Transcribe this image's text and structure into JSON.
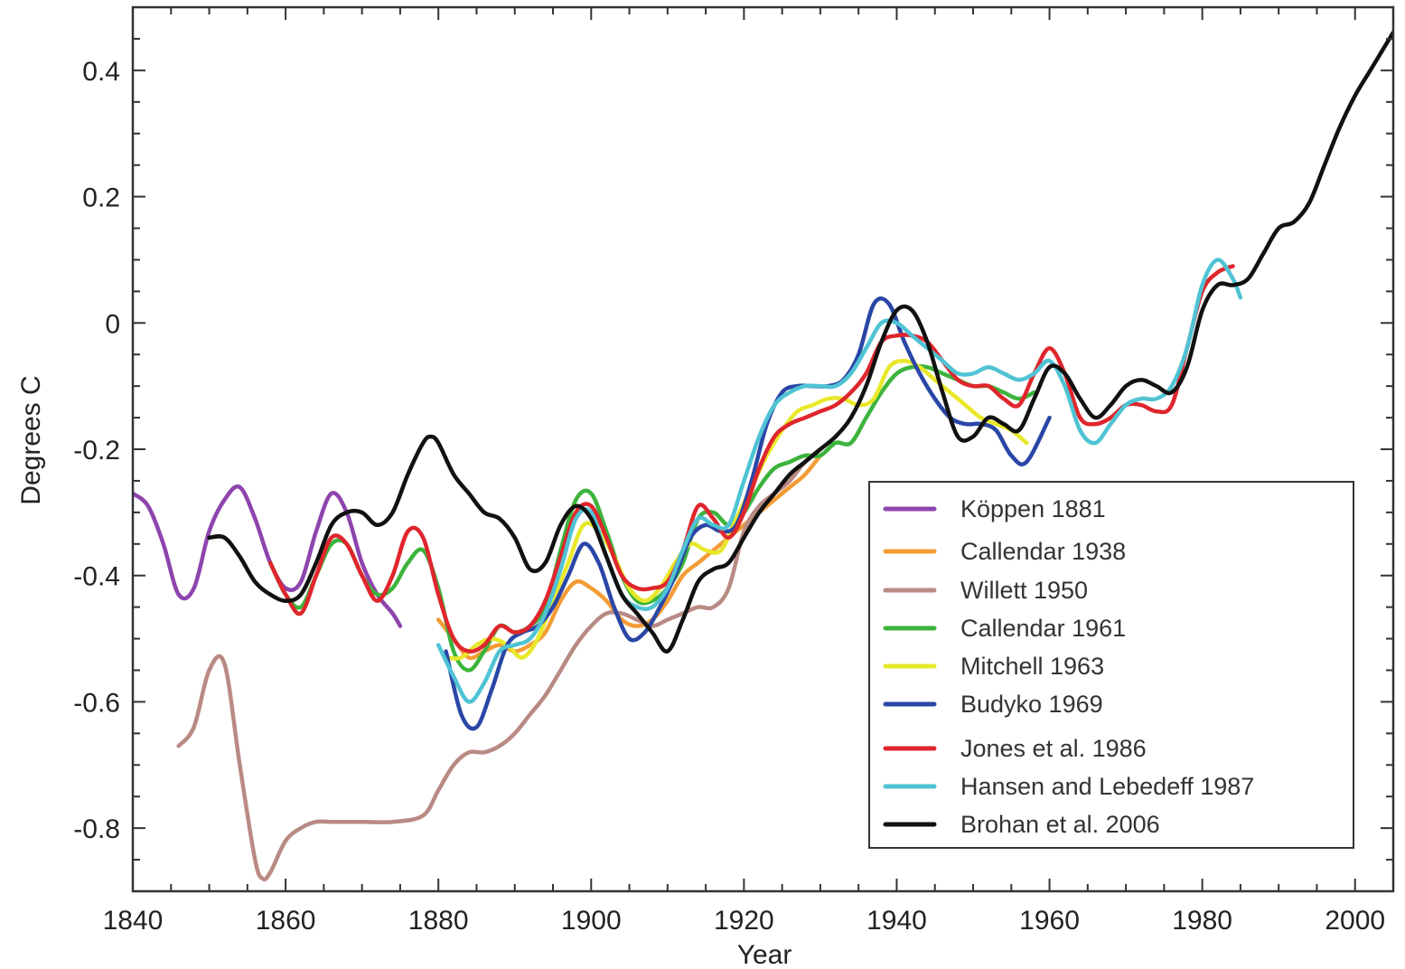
{
  "chart_data": {
    "type": "line",
    "xlabel": "Year",
    "ylabel": "Degrees C",
    "xlim": [
      1840,
      2005
    ],
    "ylim": [
      -0.9,
      0.5
    ],
    "xticks": [
      1840,
      1860,
      1880,
      1900,
      1920,
      1940,
      1960,
      1980,
      2000
    ],
    "yticks": [
      -0.8,
      -0.6,
      -0.4,
      -0.2,
      0,
      0.2,
      0.4
    ],
    "ytick_labels": [
      "-0.8",
      "-0.6",
      "-0.4",
      "-0.2",
      "0",
      "0.2",
      "0.4"
    ],
    "xtick_labels": [
      "1840",
      "1860",
      "1880",
      "1900",
      "1920",
      "1940",
      "1960",
      "1980",
      "2000"
    ],
    "grid": false,
    "legend_position": "lower-right",
    "series": [
      {
        "name": "Köppen 1881",
        "color": "#8e44ad",
        "x": [
          1840,
          1842,
          1844,
          1846,
          1848,
          1850,
          1852,
          1854,
          1856,
          1858,
          1860,
          1862,
          1864,
          1866,
          1868,
          1870,
          1872,
          1874,
          1875
        ],
        "y": [
          -0.27,
          -0.29,
          -0.35,
          -0.43,
          -0.42,
          -0.33,
          -0.28,
          -0.26,
          -0.31,
          -0.38,
          -0.42,
          -0.41,
          -0.33,
          -0.27,
          -0.3,
          -0.38,
          -0.43,
          -0.46,
          -0.48
        ]
      },
      {
        "name": "Callendar 1938",
        "color": "#f39c35",
        "x": [
          1880,
          1882,
          1884,
          1886,
          1888,
          1890,
          1892,
          1894,
          1896,
          1898,
          1900,
          1902,
          1904,
          1906,
          1908,
          1910,
          1912,
          1914,
          1916,
          1918,
          1920,
          1922,
          1924,
          1926,
          1928,
          1930
        ],
        "y": [
          -0.47,
          -0.5,
          -0.53,
          -0.52,
          -0.51,
          -0.52,
          -0.51,
          -0.49,
          -0.44,
          -0.41,
          -0.42,
          -0.44,
          -0.47,
          -0.48,
          -0.47,
          -0.44,
          -0.4,
          -0.38,
          -0.36,
          -0.34,
          -0.32,
          -0.3,
          -0.28,
          -0.26,
          -0.24,
          -0.21
        ]
      },
      {
        "name": "Willett 1950",
        "color": "#b98a84",
        "x": [
          1846,
          1848,
          1850,
          1852,
          1854,
          1856,
          1857,
          1858,
          1860,
          1862,
          1864,
          1866,
          1870,
          1874,
          1878,
          1880,
          1882,
          1884,
          1886,
          1888,
          1890,
          1892,
          1894,
          1896,
          1898,
          1900,
          1902,
          1904,
          1906,
          1908,
          1910,
          1912,
          1914,
          1916,
          1918,
          1920,
          1922,
          1924,
          1926,
          1928,
          1930
        ],
        "y": [
          -0.67,
          -0.64,
          -0.55,
          -0.54,
          -0.7,
          -0.85,
          -0.88,
          -0.87,
          -0.82,
          -0.8,
          -0.79,
          -0.79,
          -0.79,
          -0.79,
          -0.78,
          -0.74,
          -0.7,
          -0.68,
          -0.68,
          -0.67,
          -0.65,
          -0.62,
          -0.59,
          -0.55,
          -0.51,
          -0.48,
          -0.46,
          -0.46,
          -0.47,
          -0.48,
          -0.47,
          -0.46,
          -0.45,
          -0.45,
          -0.42,
          -0.33,
          -0.29,
          -0.27,
          -0.25,
          -0.22,
          -0.2
        ]
      },
      {
        "name": "Callendar 1961",
        "color": "#3cb43c",
        "x": [
          1858,
          1860,
          1862,
          1864,
          1866,
          1868,
          1870,
          1872,
          1874,
          1876,
          1878,
          1880,
          1882,
          1884,
          1886,
          1888,
          1890,
          1892,
          1894,
          1896,
          1898,
          1900,
          1902,
          1904,
          1906,
          1908,
          1910,
          1912,
          1914,
          1916,
          1918,
          1920,
          1922,
          1924,
          1926,
          1928,
          1930,
          1932,
          1934,
          1936,
          1938,
          1940,
          1942,
          1944,
          1946,
          1948,
          1950,
          1952,
          1954,
          1956,
          1958
        ],
        "y": [
          -0.38,
          -0.43,
          -0.45,
          -0.4,
          -0.35,
          -0.35,
          -0.4,
          -0.43,
          -0.42,
          -0.38,
          -0.36,
          -0.42,
          -0.52,
          -0.55,
          -0.52,
          -0.48,
          -0.49,
          -0.48,
          -0.45,
          -0.36,
          -0.28,
          -0.27,
          -0.33,
          -0.4,
          -0.44,
          -0.44,
          -0.42,
          -0.38,
          -0.31,
          -0.3,
          -0.32,
          -0.3,
          -0.26,
          -0.23,
          -0.22,
          -0.21,
          -0.21,
          -0.19,
          -0.19,
          -0.15,
          -0.11,
          -0.08,
          -0.07,
          -0.07,
          -0.08,
          -0.09,
          -0.1,
          -0.1,
          -0.11,
          -0.12,
          -0.11
        ]
      },
      {
        "name": "Mitchell 1963",
        "color": "#e8e82a",
        "x": [
          1881,
          1883,
          1885,
          1887,
          1889,
          1891,
          1893,
          1895,
          1897,
          1899,
          1901,
          1903,
          1905,
          1907,
          1909,
          1911,
          1913,
          1915,
          1917,
          1919,
          1921,
          1923,
          1925,
          1927,
          1929,
          1931,
          1933,
          1935,
          1937,
          1939,
          1941,
          1943,
          1945,
          1947,
          1949,
          1951,
          1953,
          1955,
          1957
        ],
        "y": [
          -0.53,
          -0.53,
          -0.51,
          -0.5,
          -0.51,
          -0.53,
          -0.5,
          -0.44,
          -0.38,
          -0.32,
          -0.33,
          -0.37,
          -0.42,
          -0.44,
          -0.42,
          -0.38,
          -0.35,
          -0.36,
          -0.36,
          -0.31,
          -0.26,
          -0.21,
          -0.17,
          -0.14,
          -0.13,
          -0.12,
          -0.12,
          -0.13,
          -0.12,
          -0.07,
          -0.06,
          -0.07,
          -0.09,
          -0.11,
          -0.13,
          -0.15,
          -0.16,
          -0.17,
          -0.19
        ]
      },
      {
        "name": "Budyko 1969",
        "color": "#2a46a6",
        "x": [
          1881,
          1883,
          1885,
          1887,
          1889,
          1891,
          1893,
          1895,
          1897,
          1899,
          1901,
          1903,
          1905,
          1907,
          1909,
          1911,
          1913,
          1915,
          1917,
          1919,
          1921,
          1923,
          1925,
          1927,
          1929,
          1931,
          1933,
          1935,
          1937,
          1939,
          1941,
          1943,
          1945,
          1947,
          1949,
          1951,
          1953,
          1955,
          1957,
          1960
        ],
        "y": [
          -0.52,
          -0.62,
          -0.64,
          -0.58,
          -0.51,
          -0.49,
          -0.48,
          -0.45,
          -0.4,
          -0.35,
          -0.38,
          -0.45,
          -0.5,
          -0.49,
          -0.45,
          -0.4,
          -0.34,
          -0.32,
          -0.33,
          -0.32,
          -0.25,
          -0.16,
          -0.11,
          -0.1,
          -0.1,
          -0.1,
          -0.09,
          -0.05,
          0.03,
          0.03,
          -0.03,
          -0.08,
          -0.12,
          -0.15,
          -0.16,
          -0.16,
          -0.17,
          -0.21,
          -0.22,
          -0.15
        ]
      },
      {
        "name": "Jones et al. 1986",
        "color": "#e0262d",
        "x": [
          1858,
          1860,
          1862,
          1864,
          1866,
          1868,
          1870,
          1872,
          1874,
          1876,
          1878,
          1880,
          1882,
          1884,
          1886,
          1888,
          1890,
          1892,
          1894,
          1896,
          1898,
          1900,
          1902,
          1904,
          1906,
          1908,
          1910,
          1912,
          1914,
          1916,
          1918,
          1920,
          1922,
          1924,
          1926,
          1928,
          1930,
          1932,
          1934,
          1936,
          1938,
          1940,
          1942,
          1944,
          1946,
          1948,
          1950,
          1952,
          1954,
          1956,
          1958,
          1960,
          1962,
          1964,
          1966,
          1968,
          1970,
          1972,
          1974,
          1976,
          1978,
          1980,
          1982,
          1984
        ],
        "y": [
          -0.38,
          -0.43,
          -0.46,
          -0.4,
          -0.34,
          -0.35,
          -0.4,
          -0.44,
          -0.4,
          -0.33,
          -0.34,
          -0.43,
          -0.5,
          -0.52,
          -0.51,
          -0.48,
          -0.49,
          -0.48,
          -0.44,
          -0.37,
          -0.3,
          -0.29,
          -0.34,
          -0.4,
          -0.42,
          -0.42,
          -0.41,
          -0.36,
          -0.29,
          -0.31,
          -0.34,
          -0.3,
          -0.23,
          -0.18,
          -0.16,
          -0.15,
          -0.14,
          -0.13,
          -0.11,
          -0.08,
          -0.03,
          -0.02,
          -0.02,
          -0.03,
          -0.06,
          -0.09,
          -0.1,
          -0.1,
          -0.12,
          -0.13,
          -0.08,
          -0.04,
          -0.08,
          -0.15,
          -0.16,
          -0.15,
          -0.13,
          -0.13,
          -0.14,
          -0.13,
          -0.04,
          0.05,
          0.08,
          0.09
        ]
      },
      {
        "name": "Hansen and Lebedeff 1987",
        "color": "#4fc3d4",
        "x": [
          1880,
          1882,
          1884,
          1886,
          1888,
          1890,
          1892,
          1894,
          1896,
          1898,
          1900,
          1902,
          1904,
          1906,
          1908,
          1910,
          1912,
          1914,
          1916,
          1918,
          1920,
          1922,
          1924,
          1926,
          1928,
          1930,
          1932,
          1934,
          1936,
          1938,
          1940,
          1942,
          1944,
          1946,
          1948,
          1950,
          1952,
          1954,
          1956,
          1958,
          1960,
          1962,
          1964,
          1966,
          1968,
          1970,
          1972,
          1974,
          1976,
          1978,
          1980,
          1982,
          1984,
          1985
        ],
        "y": [
          -0.51,
          -0.56,
          -0.6,
          -0.57,
          -0.52,
          -0.51,
          -0.5,
          -0.46,
          -0.39,
          -0.31,
          -0.3,
          -0.37,
          -0.43,
          -0.45,
          -0.45,
          -0.42,
          -0.36,
          -0.31,
          -0.32,
          -0.32,
          -0.25,
          -0.18,
          -0.13,
          -0.11,
          -0.1,
          -0.1,
          -0.1,
          -0.08,
          -0.04,
          0.0,
          0.0,
          -0.02,
          -0.04,
          -0.06,
          -0.08,
          -0.08,
          -0.07,
          -0.08,
          -0.09,
          -0.08,
          -0.06,
          -0.1,
          -0.17,
          -0.19,
          -0.16,
          -0.13,
          -0.12,
          -0.12,
          -0.1,
          -0.04,
          0.06,
          0.1,
          0.07,
          0.04
        ]
      },
      {
        "name": "Brohan et al. 2006",
        "color": "#111111",
        "x": [
          1850,
          1852,
          1854,
          1856,
          1858,
          1860,
          1862,
          1864,
          1866,
          1868,
          1870,
          1872,
          1874,
          1876,
          1878,
          1879,
          1880,
          1882,
          1884,
          1886,
          1888,
          1890,
          1892,
          1894,
          1896,
          1898,
          1900,
          1902,
          1904,
          1906,
          1908,
          1910,
          1912,
          1914,
          1916,
          1918,
          1920,
          1922,
          1924,
          1926,
          1928,
          1930,
          1932,
          1934,
          1936,
          1938,
          1940,
          1942,
          1944,
          1946,
          1948,
          1950,
          1952,
          1954,
          1956,
          1958,
          1960,
          1962,
          1964,
          1966,
          1968,
          1970,
          1972,
          1974,
          1976,
          1978,
          1980,
          1982,
          1984,
          1986,
          1988,
          1990,
          1992,
          1994,
          1996,
          1998,
          2000,
          2002,
          2004,
          2005
        ],
        "y": [
          -0.34,
          -0.34,
          -0.37,
          -0.41,
          -0.43,
          -0.44,
          -0.43,
          -0.38,
          -0.32,
          -0.3,
          -0.3,
          -0.32,
          -0.3,
          -0.24,
          -0.19,
          -0.18,
          -0.19,
          -0.24,
          -0.27,
          -0.3,
          -0.31,
          -0.34,
          -0.39,
          -0.38,
          -0.32,
          -0.29,
          -0.31,
          -0.37,
          -0.43,
          -0.46,
          -0.49,
          -0.52,
          -0.47,
          -0.41,
          -0.39,
          -0.38,
          -0.34,
          -0.3,
          -0.27,
          -0.24,
          -0.22,
          -0.2,
          -0.18,
          -0.15,
          -0.1,
          -0.03,
          0.02,
          0.02,
          -0.03,
          -0.11,
          -0.18,
          -0.18,
          -0.15,
          -0.16,
          -0.17,
          -0.12,
          -0.07,
          -0.08,
          -0.12,
          -0.15,
          -0.13,
          -0.1,
          -0.09,
          -0.1,
          -0.11,
          -0.07,
          0.02,
          0.06,
          0.06,
          0.07,
          0.11,
          0.15,
          0.16,
          0.19,
          0.25,
          0.31,
          0.36,
          0.4,
          0.44,
          0.46
        ]
      }
    ]
  }
}
